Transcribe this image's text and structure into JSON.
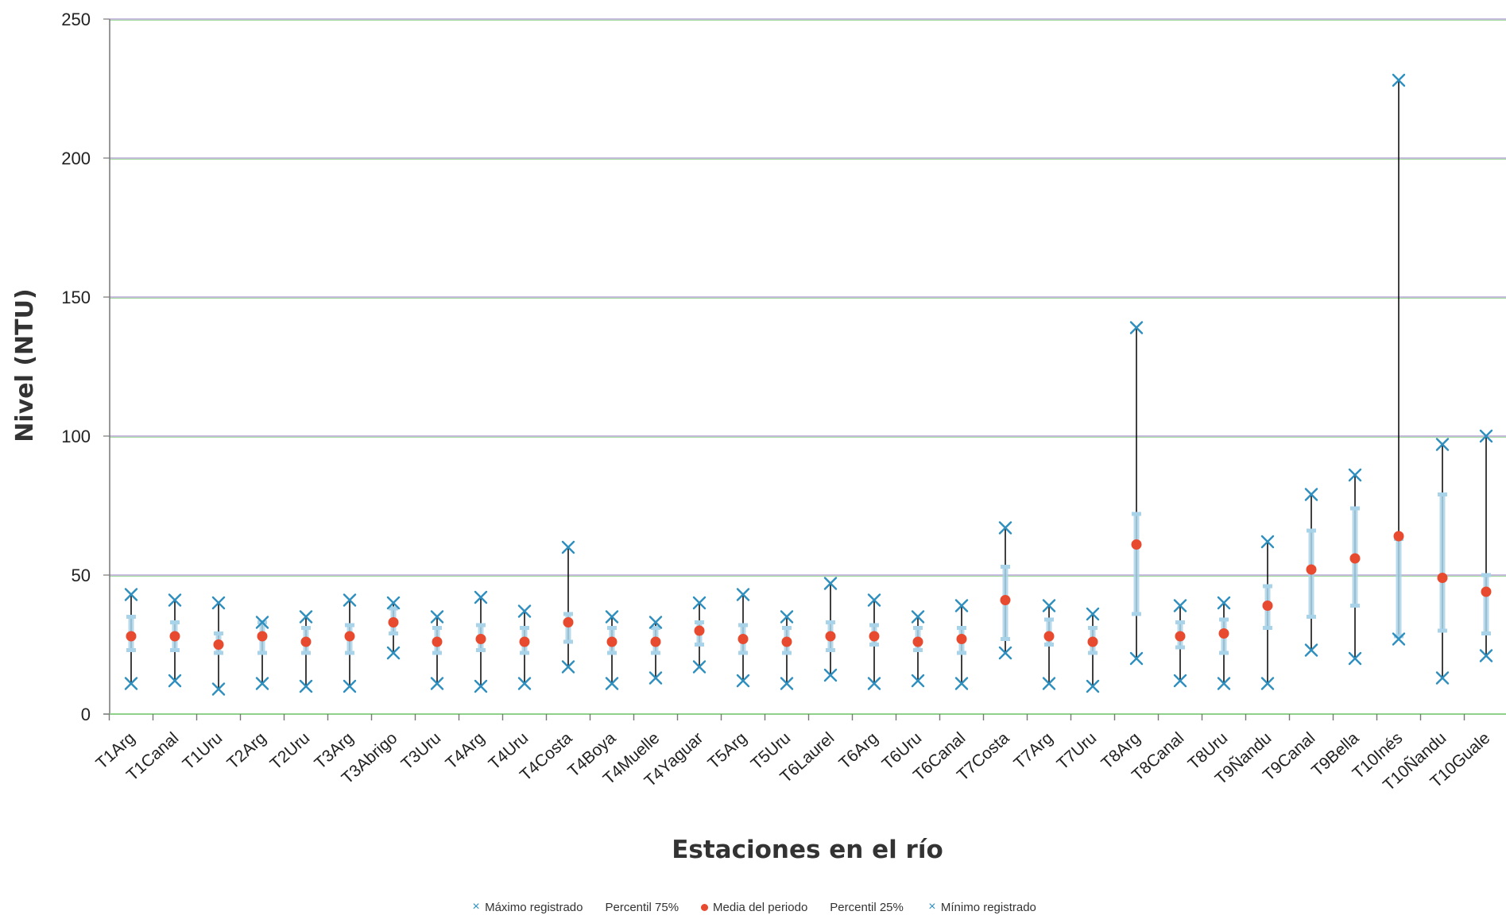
{
  "chart_data": {
    "type": "scatter",
    "title": "",
    "xlabel": "Estaciones en el río",
    "ylabel": "Nivel (NTU)",
    "ylim": [
      0,
      250
    ],
    "yticks": [
      0,
      50,
      100,
      150,
      200,
      250
    ],
    "grid": true,
    "legend_position": "bottom",
    "colors": {
      "max_min": "#2e8fbf",
      "percentile": "#a9d3e8",
      "mean": "#e84a2f",
      "line": "#111111",
      "grid_x": "#8fd18a",
      "grid_y": "#b7a6d6"
    },
    "categories": [
      "T1Arg",
      "T1Canal",
      "T1Uru",
      "T2Arg",
      "T2Uru",
      "T3Arg",
      "T3Abrigo",
      "T3Uru",
      "T4Arg",
      "T4Uru",
      "T4Costa",
      "T4Boya",
      "T4Muelle",
      "T4Yaguar",
      "T5Arg",
      "T5Uru",
      "T6Laurel",
      "T6Arg",
      "T6Uru",
      "T6Canal",
      "T7Costa",
      "T7Arg",
      "T7Uru",
      "T8Arg",
      "T8Canal",
      "T8Uru",
      "T9Ñandu",
      "T9Canal",
      "T9Bella",
      "T10Inés",
      "T10Ñandu",
      "T10Guale"
    ],
    "series": [
      {
        "name": "Máximo registrado",
        "values": [
          43,
          41,
          40,
          33,
          35,
          41,
          40,
          35,
          42,
          37,
          60,
          35,
          33,
          40,
          43,
          35,
          47,
          41,
          35,
          39,
          67,
          39,
          36,
          139,
          39,
          40,
          62,
          79,
          86,
          228,
          97,
          100
        ]
      },
      {
        "name": "Percentil 75%",
        "values": [
          35,
          33,
          29,
          33,
          31,
          32,
          38,
          31,
          32,
          31,
          36,
          31,
          31,
          33,
          32,
          31,
          33,
          32,
          31,
          31,
          53,
          34,
          31,
          72,
          33,
          34,
          46,
          66,
          74,
          63,
          79,
          50
        ]
      },
      {
        "name": "Media del periodo",
        "values": [
          28,
          28,
          25,
          28,
          26,
          28,
          33,
          26,
          27,
          26,
          33,
          26,
          26,
          30,
          27,
          26,
          28,
          28,
          26,
          27,
          41,
          28,
          26,
          61,
          28,
          29,
          39,
          52,
          56,
          64,
          49,
          44
        ]
      },
      {
        "name": "Percentil 25%",
        "values": [
          23,
          23,
          22,
          22,
          22,
          22,
          29,
          22,
          23,
          22,
          26,
          22,
          22,
          25,
          22,
          22,
          23,
          25,
          23,
          22,
          27,
          25,
          22,
          36,
          24,
          22,
          31,
          35,
          39,
          28,
          30,
          29
        ]
      },
      {
        "name": "Mínimo registrado",
        "values": [
          11,
          12,
          9,
          11,
          10,
          10,
          22,
          11,
          10,
          11,
          17,
          11,
          13,
          17,
          12,
          11,
          14,
          11,
          12,
          11,
          22,
          11,
          10,
          20,
          12,
          11,
          11,
          23,
          20,
          27,
          13,
          21
        ]
      }
    ]
  }
}
